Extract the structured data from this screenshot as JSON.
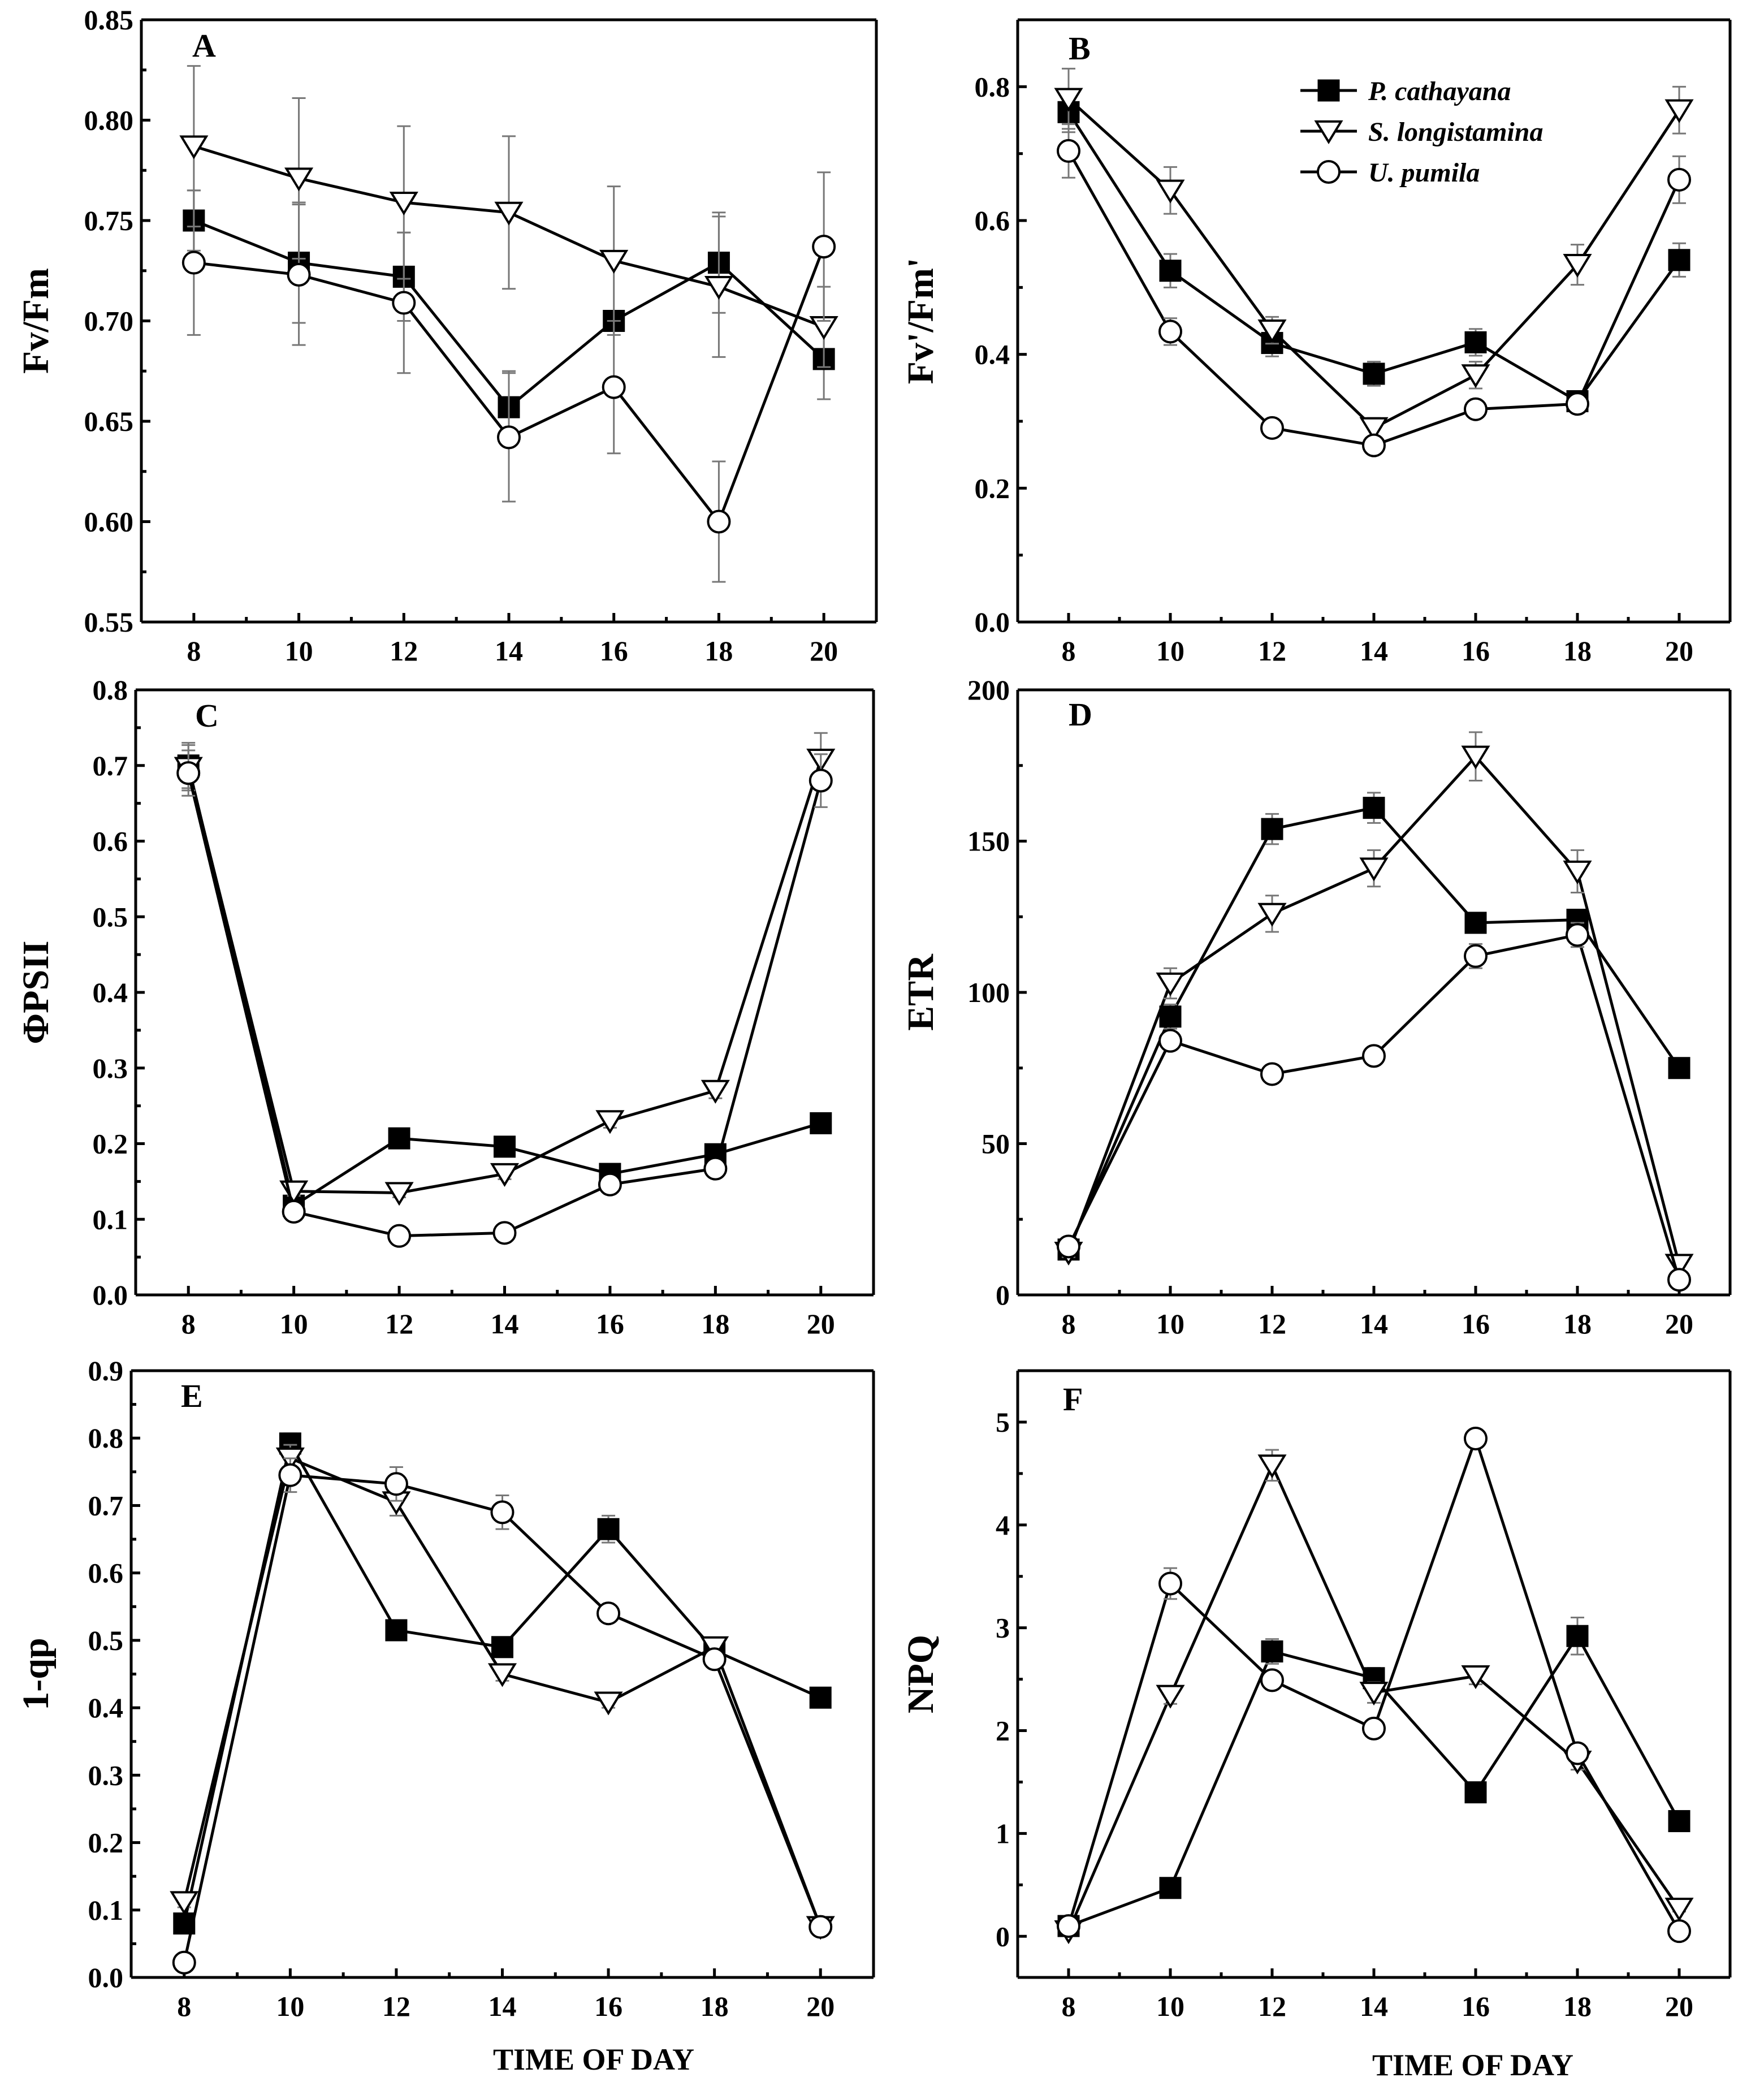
{
  "figure": {
    "legend": [
      {
        "name": "P. cathayana",
        "marker": "filled-square"
      },
      {
        "name": "S. longistamina",
        "marker": "open-triangle-down"
      },
      {
        "name": "U. pumila",
        "marker": "open-circle"
      }
    ],
    "colors": {
      "line": "#000000",
      "error_bar": "#777777",
      "background": "#ffffff"
    }
  },
  "chart_data": [
    {
      "type": "line",
      "panel": "A",
      "xlabel": "",
      "ylabel": "Fv/Fm",
      "x": [
        8,
        10,
        12,
        14,
        16,
        18,
        20
      ],
      "xlim": [
        7,
        21
      ],
      "ylim": [
        0.55,
        0.85
      ],
      "yticks": [
        "0.55",
        "0.60",
        "0.65",
        "0.70",
        "0.75",
        "0.80",
        "0.85"
      ],
      "series": [
        {
          "name": "P. cathayana",
          "marker": "square",
          "values": [
            0.75,
            0.729,
            0.722,
            0.657,
            0.7,
            0.729,
            0.681
          ],
          "err": [
            0.015,
            0.03,
            0.022,
            0.018,
            0.005,
            0.025,
            0.02
          ]
        },
        {
          "name": "S. longistamina",
          "marker": "triangle",
          "values": [
            0.787,
            0.771,
            0.759,
            0.754,
            0.73,
            0.717,
            0.697
          ],
          "err": [
            0.04,
            0.04,
            0.038,
            0.038,
            0.037,
            0.035,
            0.02
          ]
        },
        {
          "name": "U. pumila",
          "marker": "circle",
          "values": [
            0.729,
            0.723,
            0.709,
            0.642,
            0.667,
            0.6,
            0.737
          ],
          "err": [
            0.036,
            0.035,
            0.035,
            0.032,
            0.033,
            0.03,
            0.037
          ]
        }
      ]
    },
    {
      "type": "line",
      "panel": "B",
      "xlabel": "",
      "ylabel": "Fv'/Fm'",
      "x": [
        8,
        10,
        12,
        14,
        16,
        18,
        20
      ],
      "xlim": [
        7,
        21
      ],
      "ylim": [
        0.0,
        0.9
      ],
      "yticks": [
        "0.0",
        "0.2",
        "0.4",
        "0.6",
        "0.8"
      ],
      "legend_position": "top-right",
      "series": [
        {
          "name": "P. cathayana",
          "marker": "square",
          "values": [
            0.762,
            0.525,
            0.417,
            0.371,
            0.418,
            0.33,
            0.541
          ],
          "err": [
            0.03,
            0.025,
            0.02,
            0.018,
            0.02,
            0.015,
            0.025
          ]
        },
        {
          "name": "S. longistamina",
          "marker": "triangle",
          "values": [
            0.782,
            0.645,
            0.436,
            0.29,
            0.369,
            0.534,
            0.765
          ],
          "err": [
            0.045,
            0.035,
            0.02,
            0.015,
            0.02,
            0.03,
            0.035
          ]
        },
        {
          "name": "U. pumila",
          "marker": "circle",
          "values": [
            0.704,
            0.434,
            0.29,
            0.264,
            0.318,
            0.326,
            0.661
          ],
          "err": [
            0.04,
            0.02,
            0.01,
            0.012,
            0.012,
            0.012,
            0.035
          ]
        }
      ]
    },
    {
      "type": "line",
      "panel": "C",
      "xlabel": "",
      "ylabel": "ΦPSII",
      "x": [
        8,
        10,
        12,
        14,
        16,
        18,
        20
      ],
      "xlim": [
        7,
        21
      ],
      "ylim": [
        0.0,
        0.8
      ],
      "yticks": [
        "0.0",
        "0.1",
        "0.2",
        "0.3",
        "0.4",
        "0.5",
        "0.6",
        "0.7",
        "0.8"
      ],
      "series": [
        {
          "name": "P. cathayana",
          "marker": "square",
          "values": [
            0.7,
            0.118,
            0.207,
            0.196,
            0.16,
            0.186,
            0.227
          ],
          "err": [
            0.03,
            0.006,
            0.008,
            0.008,
            0.007,
            0.008,
            0.008
          ]
        },
        {
          "name": "S. longistamina",
          "marker": "triangle",
          "values": [
            0.697,
            0.137,
            0.135,
            0.16,
            0.23,
            0.27,
            0.708
          ],
          "err": [
            0.03,
            0.006,
            0.006,
            0.007,
            0.009,
            0.01,
            0.035
          ]
        },
        {
          "name": "U. pumila",
          "marker": "circle",
          "values": [
            0.69,
            0.11,
            0.078,
            0.082,
            0.146,
            0.167,
            0.68
          ],
          "err": [
            0.03,
            0.008,
            0.006,
            0.006,
            0.007,
            0.008,
            0.035
          ]
        }
      ]
    },
    {
      "type": "line",
      "panel": "D",
      "xlabel": "",
      "ylabel": "ETR",
      "x": [
        8,
        10,
        12,
        14,
        16,
        18,
        20
      ],
      "xlim": [
        7,
        21
      ],
      "ylim": [
        0,
        200
      ],
      "yticks": [
        "0",
        "50",
        "100",
        "150",
        "200"
      ],
      "series": [
        {
          "name": "P. cathayana",
          "marker": "square",
          "values": [
            15,
            92,
            154,
            161,
            123,
            124,
            75
          ],
          "err": [
            1.5,
            4,
            5,
            5,
            3,
            3,
            2
          ]
        },
        {
          "name": "S. longistamina",
          "marker": "triangle",
          "values": [
            14,
            103,
            126,
            141,
            178,
            140,
            10
          ],
          "err": [
            1.5,
            5,
            6,
            6,
            8,
            7,
            2
          ]
        },
        {
          "name": "U. pumila",
          "marker": "circle",
          "values": [
            16,
            84,
            73,
            79,
            112,
            119,
            5
          ],
          "err": [
            1.5,
            3,
            3,
            3,
            4,
            4,
            1.5
          ]
        }
      ]
    },
    {
      "type": "line",
      "panel": "E",
      "xlabel": "TIME OF DAY",
      "ylabel": "1-qp",
      "x": [
        8,
        10,
        12,
        14,
        16,
        18,
        20
      ],
      "xlim": [
        7,
        21
      ],
      "ylim": [
        0.0,
        0.9
      ],
      "yticks": [
        "0.0",
        "0.1",
        "0.2",
        "0.3",
        "0.4",
        "0.5",
        "0.6",
        "0.7",
        "0.8",
        "0.9"
      ],
      "series": [
        {
          "name": "P. cathayana",
          "marker": "square",
          "values": [
            0.08,
            0.792,
            0.515,
            0.49,
            0.665,
            0.485,
            0.415
          ],
          "err": [
            0.008,
            0.015,
            0.01,
            0.01,
            0.02,
            0.01,
            0.008
          ]
        },
        {
          "name": "S. longistamina",
          "marker": "triangle",
          "values": [
            0.112,
            0.77,
            0.705,
            0.45,
            0.408,
            0.49,
            0.075
          ],
          "err": [
            0.008,
            0.02,
            0.02,
            0.01,
            0.008,
            0.01,
            0.006
          ]
        },
        {
          "name": "U. pumila",
          "marker": "circle",
          "values": [
            0.022,
            0.745,
            0.732,
            0.69,
            0.54,
            0.472,
            0.075
          ],
          "err": [
            0.005,
            0.025,
            0.025,
            0.025,
            0.01,
            0.01,
            0.006
          ]
        }
      ]
    },
    {
      "type": "line",
      "panel": "F",
      "xlabel": "TIME OF DAY",
      "ylabel": "NPQ",
      "x": [
        8,
        10,
        12,
        14,
        16,
        18,
        20
      ],
      "xlim": [
        7,
        21
      ],
      "ylim": [
        -0.4,
        5.5
      ],
      "yticks": [
        "0",
        "1",
        "2",
        "3",
        "4",
        "5"
      ],
      "series": [
        {
          "name": "P. cathayana",
          "marker": "square",
          "values": [
            0.1,
            0.47,
            2.77,
            2.51,
            1.4,
            2.92,
            1.12
          ],
          "err": [
            0.02,
            0.03,
            0.12,
            0.1,
            0.05,
            0.18,
            0.05
          ]
        },
        {
          "name": "S. longistamina",
          "marker": "triangle",
          "values": [
            0.05,
            2.34,
            4.58,
            2.37,
            2.53,
            1.7,
            0.27
          ],
          "err": [
            0.02,
            0.08,
            0.15,
            0.1,
            0.08,
            0.08,
            0.03
          ]
        },
        {
          "name": "U. pumila",
          "marker": "circle",
          "values": [
            0.1,
            3.43,
            2.49,
            2.02,
            4.84,
            1.78,
            0.05
          ],
          "err": [
            0.02,
            0.15,
            0.08,
            0.08,
            0.06,
            0.08,
            0.02
          ]
        }
      ]
    }
  ]
}
